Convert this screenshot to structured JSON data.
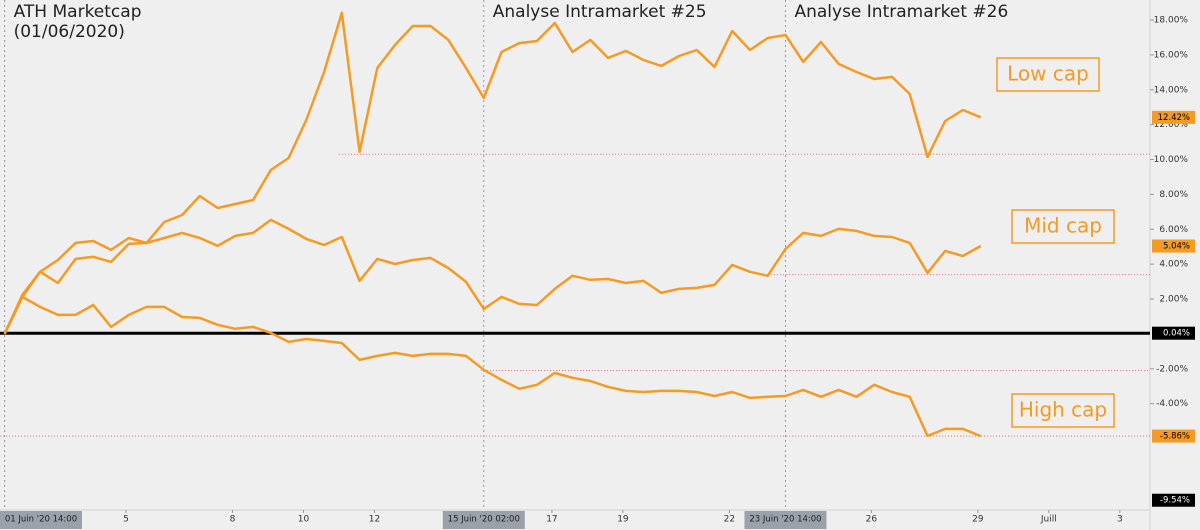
{
  "chart_data": {
    "type": "line",
    "x": [
      1.58,
      2.08,
      2.58,
      3.08,
      3.58,
      4.08,
      4.58,
      5.08,
      5.58,
      6.08,
      6.58,
      7.08,
      7.58,
      8.08,
      8.58,
      9.08,
      9.58,
      10.08,
      10.58,
      11.08,
      11.58,
      12.08,
      12.58,
      13.08,
      13.58,
      14.08,
      14.58,
      15.08,
      15.58,
      16.08,
      16.58,
      17.08,
      17.58,
      18.08,
      18.58,
      19.08,
      19.58,
      20.08,
      20.58,
      21.08,
      21.58,
      22.08,
      22.58,
      23.08,
      23.58,
      24.08,
      24.58,
      25.08,
      25.58,
      26.08,
      26.58,
      27.08,
      27.58,
      28.08,
      28.58,
      29.08
    ],
    "series": [
      {
        "name": "Low cap",
        "color": "#f59a23",
        "values": [
          0,
          2.12,
          3.56,
          4.24,
          5.22,
          5.33,
          4.82,
          5.5,
          5.22,
          6.42,
          6.82,
          7.91,
          7.22,
          7.45,
          7.68,
          9.4,
          10.09,
          12.27,
          15.02,
          18.41,
          10.44,
          15.25,
          16.57,
          17.66,
          17.66,
          16.86,
          15.25,
          13.53,
          16.17,
          16.68,
          16.8,
          17.83,
          16.17,
          16.86,
          15.83,
          16.23,
          15.71,
          15.37,
          15.94,
          16.28,
          15.31,
          17.37,
          16.28,
          16.97,
          17.14,
          15.6,
          16.74,
          15.48,
          15.02,
          14.62,
          14.74,
          13.76,
          10.15,
          12.21,
          12.84,
          12.42
        ]
      },
      {
        "name": "Mid cap",
        "color": "#f59a23",
        "values": [
          0,
          2.24,
          3.56,
          2.92,
          4.3,
          4.42,
          4.13,
          5.16,
          5.22,
          5.5,
          5.79,
          5.5,
          5.05,
          5.62,
          5.79,
          6.54,
          6.02,
          5.45,
          5.1,
          5.56,
          3.04,
          4.3,
          4.01,
          4.24,
          4.36,
          3.78,
          2.98,
          1.43,
          2.12,
          1.72,
          1.66,
          2.58,
          3.33,
          3.1,
          3.15,
          2.92,
          3.04,
          2.35,
          2.58,
          2.64,
          2.81,
          3.96,
          3.56,
          3.33,
          4.87,
          5.79,
          5.62,
          6.02,
          5.91,
          5.62,
          5.56,
          5.22,
          3.5,
          4.76,
          4.47,
          5.04
        ]
      },
      {
        "name": "High cap",
        "color": "#f59a23",
        "values": [
          0,
          2.12,
          1.55,
          1.09,
          1.09,
          1.66,
          0.4,
          1.09,
          1.55,
          1.55,
          0.97,
          0.92,
          0.52,
          0.29,
          0.4,
          0.06,
          -0.46,
          -0.29,
          -0.4,
          -0.52,
          -1.49,
          -1.26,
          -1.09,
          -1.26,
          -1.15,
          -1.15,
          -1.26,
          -2.06,
          -2.64,
          -3.15,
          -2.92,
          -2.24,
          -2.52,
          -2.7,
          -3.04,
          -3.27,
          -3.33,
          -3.27,
          -3.27,
          -3.33,
          -3.56,
          -3.33,
          -3.67,
          -3.61,
          -3.56,
          -3.21,
          -3.61,
          -3.21,
          -3.61,
          -2.92,
          -3.33,
          -3.61,
          -5.85,
          -5.45,
          -5.45,
          -5.86
        ]
      }
    ],
    "xlim": [
      1.45,
      33.85
    ],
    "ylim": [
      -10.1,
      19.15
    ],
    "xticks": [
      5,
      8,
      10,
      12,
      17,
      19,
      22,
      26,
      29,
      {
        "value": 31,
        "label": "Juill"
      },
      {
        "value": 33,
        "label": "3"
      }
    ],
    "yticks": [
      {
        "value": 18,
        "label": "18.00%"
      },
      {
        "value": 16,
        "label": "16.00%"
      },
      {
        "value": 14,
        "label": "14.00%"
      },
      {
        "value": 12,
        "label": "12.00%"
      },
      {
        "value": 10,
        "label": "10.00%"
      },
      {
        "value": 8,
        "label": "8.00%"
      },
      {
        "value": 6,
        "label": "6.00%"
      },
      {
        "value": 4,
        "label": "4.00%"
      },
      {
        "value": 2,
        "label": "2.00%"
      },
      {
        "value": -2,
        "label": "-2.00%"
      },
      {
        "value": -4,
        "label": "-4.00%"
      }
    ],
    "events": [
      {
        "x": {
          "value": 1.58,
          "label": "01 Juin '20   14:00"
        },
        "text": [
          "ATH Marketcap",
          "(01/06/2020)"
        ]
      },
      {
        "x": {
          "value": 15.08,
          "label": "15 Juin '20   02:00"
        },
        "text": [
          "Analyse Intramarket #25"
        ]
      },
      {
        "x": {
          "value": 23.58,
          "label": "23 Juin '20   14:00"
        },
        "text": [
          "Analyse Intramarket #26"
        ]
      }
    ],
    "ref_lines": [
      {
        "y": 10.3,
        "x": 11.0
      },
      {
        "y": 3.4,
        "x": 23.0
      },
      {
        "y": -2.1,
        "x": 15.0
      },
      {
        "y": -5.86,
        "x": 1.45
      }
    ],
    "baseline": 0.04,
    "price_labels": [
      {
        "value": 12.42,
        "label": "12.42%",
        "color": "#f59a23"
      },
      {
        "value": 5.04,
        "label": "5.04%",
        "color": "#f59a23"
      },
      {
        "value": 0.04,
        "label": "0.04%",
        "color": "#000000"
      },
      {
        "value": -5.86,
        "label": "-5.86%",
        "color": "#f59a23"
      },
      {
        "value": -9.54,
        "label": "-9.54%",
        "color": "#000000"
      }
    ]
  }
}
